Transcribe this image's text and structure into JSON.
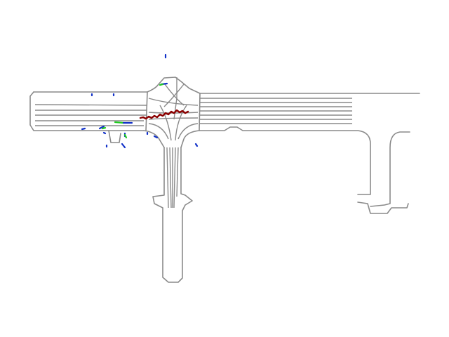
{
  "map": {
    "colors": {
      "road": "#8a8a8a",
      "ego_trajectory": "#8b0000",
      "agent_start": "#1030c8",
      "agent_end": "#22cc22",
      "background": "#ffffff"
    }
  }
}
